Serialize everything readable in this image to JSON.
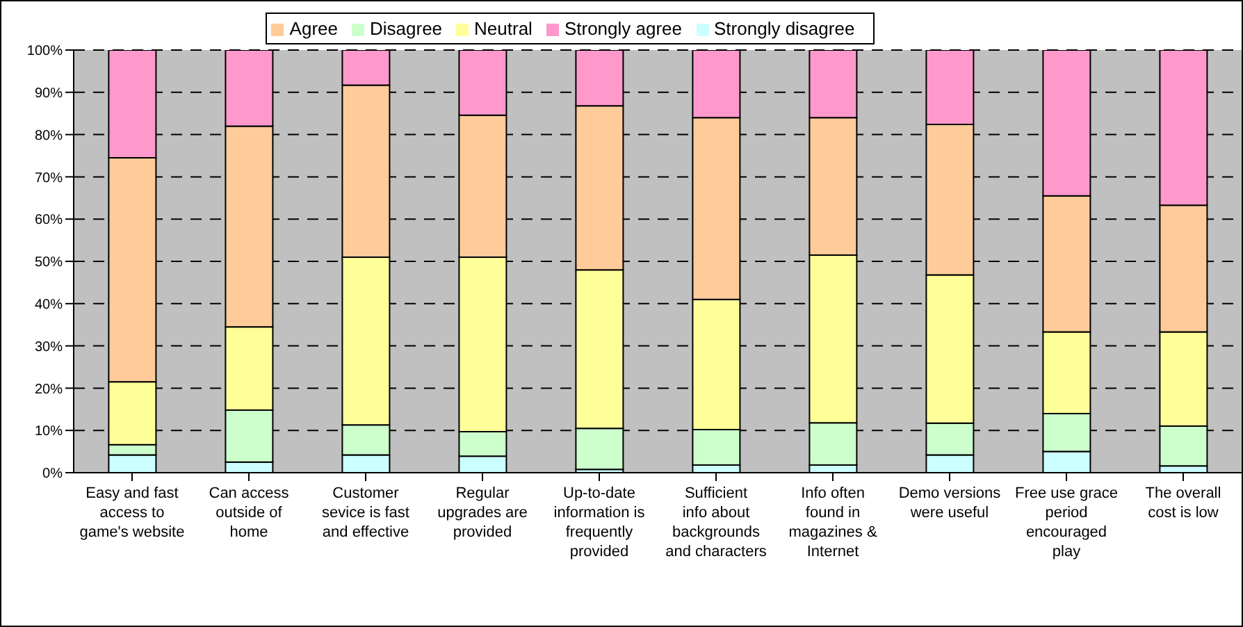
{
  "chart_data": {
    "type": "bar",
    "stacked": true,
    "categories": [
      "Easy and fast access to game's website",
      "Can access outside of home",
      "Customer sevice is fast and effective",
      "Regular upgrades are provided",
      "Up-to-date information is frequently provided",
      "Sufficient info about backgrounds and characters",
      "Info often found in magazines & Internet",
      "Demo versions were useful",
      "Free use grace period encouraged play",
      "The overall cost is low"
    ],
    "series": [
      {
        "name": "Strongly disagree",
        "color": "#ccffff",
        "values": [
          4.2,
          2.5,
          4.2,
          3.9,
          0.8,
          1.8,
          1.8,
          4.2,
          5,
          1.6
        ]
      },
      {
        "name": "Disagree",
        "color": "#ccffcc",
        "values": [
          2.4,
          12.3,
          7.1,
          5.8,
          9.7,
          8.4,
          10,
          7.5,
          9,
          9.4
        ]
      },
      {
        "name": "Neutral",
        "color": "#ffff99",
        "values": [
          14.9,
          19.7,
          39.7,
          41.3,
          37.5,
          30.8,
          39.7,
          35.1,
          19.3,
          22.3
        ]
      },
      {
        "name": "Agree",
        "color": "#ffcc99",
        "values": [
          53,
          47.5,
          40.7,
          33.6,
          38.8,
          43,
          32.5,
          35.6,
          32.2,
          30
        ]
      },
      {
        "name": "Strongly agree",
        "color": "#ff99cc",
        "values": [
          25.5,
          18,
          8.3,
          15.4,
          13.2,
          16,
          16,
          17.6,
          34.5,
          36.7
        ]
      }
    ],
    "ylim": [
      0,
      100
    ],
    "yticks": [
      {
        "value": 0,
        "label": "0%"
      },
      {
        "value": 10,
        "label": "10%"
      },
      {
        "value": 20,
        "label": "20%"
      },
      {
        "value": 30,
        "label": "30%"
      },
      {
        "value": 40,
        "label": "40%"
      },
      {
        "value": 50,
        "label": "50%"
      },
      {
        "value": 60,
        "label": "60%"
      },
      {
        "value": 70,
        "label": "70%"
      },
      {
        "value": 80,
        "label": "80%"
      },
      {
        "value": 90,
        "label": "90%"
      },
      {
        "value": 100,
        "label": "100%"
      }
    ],
    "grid": "y",
    "legend": "top"
  }
}
